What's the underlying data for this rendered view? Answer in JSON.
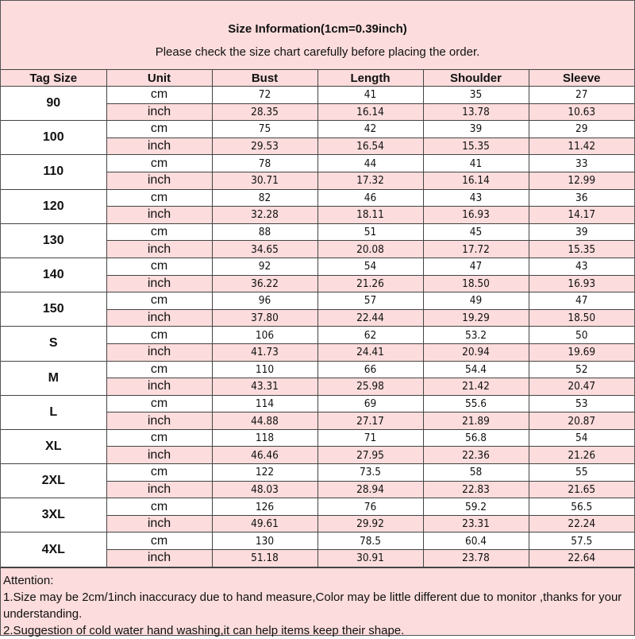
{
  "header": {
    "title": "Size Information(1cm=0.39inch)",
    "subtitle": "Please check the size chart carefully before placing the order."
  },
  "columns": [
    "Tag Size",
    "Unit",
    "Bust",
    "Length",
    "Shoulder",
    "Sleeve"
  ],
  "units": {
    "cm": "cm",
    "inch": "inch"
  },
  "colors": {
    "pink": "#fcdcdc",
    "border": "#444444"
  },
  "rows": [
    {
      "tag": "90",
      "cm": [
        "72",
        "41",
        "35",
        "27"
      ],
      "inch": [
        "28.35",
        "16.14",
        "13.78",
        "10.63"
      ]
    },
    {
      "tag": "100",
      "cm": [
        "75",
        "42",
        "39",
        "29"
      ],
      "inch": [
        "29.53",
        "16.54",
        "15.35",
        "11.42"
      ]
    },
    {
      "tag": "110",
      "cm": [
        "78",
        "44",
        "41",
        "33"
      ],
      "inch": [
        "30.71",
        "17.32",
        "16.14",
        "12.99"
      ]
    },
    {
      "tag": "120",
      "cm": [
        "82",
        "46",
        "43",
        "36"
      ],
      "inch": [
        "32.28",
        "18.11",
        "16.93",
        "14.17"
      ]
    },
    {
      "tag": "130",
      "cm": [
        "88",
        "51",
        "45",
        "39"
      ],
      "inch": [
        "34.65",
        "20.08",
        "17.72",
        "15.35"
      ]
    },
    {
      "tag": "140",
      "cm": [
        "92",
        "54",
        "47",
        "43"
      ],
      "inch": [
        "36.22",
        "21.26",
        "18.50",
        "16.93"
      ]
    },
    {
      "tag": "150",
      "cm": [
        "96",
        "57",
        "49",
        "47"
      ],
      "inch": [
        "37.80",
        "22.44",
        "19.29",
        "18.50"
      ]
    },
    {
      "tag": "S",
      "cm": [
        "106",
        "62",
        "53.2",
        "50"
      ],
      "inch": [
        "41.73",
        "24.41",
        "20.94",
        "19.69"
      ]
    },
    {
      "tag": "M",
      "cm": [
        "110",
        "66",
        "54.4",
        "52"
      ],
      "inch": [
        "43.31",
        "25.98",
        "21.42",
        "20.47"
      ]
    },
    {
      "tag": "L",
      "cm": [
        "114",
        "69",
        "55.6",
        "53"
      ],
      "inch": [
        "44.88",
        "27.17",
        "21.89",
        "20.87"
      ]
    },
    {
      "tag": "XL",
      "cm": [
        "118",
        "71",
        "56.8",
        "54"
      ],
      "inch": [
        "46.46",
        "27.95",
        "22.36",
        "21.26"
      ]
    },
    {
      "tag": "2XL",
      "cm": [
        "122",
        "73.5",
        "58",
        "55"
      ],
      "inch": [
        "48.03",
        "28.94",
        "22.83",
        "21.65"
      ]
    },
    {
      "tag": "3XL",
      "cm": [
        "126",
        "76",
        "59.2",
        "56.5"
      ],
      "inch": [
        "49.61",
        "29.92",
        "23.31",
        "22.24"
      ]
    },
    {
      "tag": "4XL",
      "cm": [
        "130",
        "78.5",
        "60.4",
        "57.5"
      ],
      "inch": [
        "51.18",
        "30.91",
        "23.78",
        "22.64"
      ]
    }
  ],
  "footer": {
    "heading": "Attention:",
    "note1": "1.Size may be 2cm/1inch inaccuracy due to hand measure,Color may be little different due to monitor ,thanks for your understanding.",
    "note2": "2.Suggestion of cold water hand washing,it can help items keep their shape."
  }
}
